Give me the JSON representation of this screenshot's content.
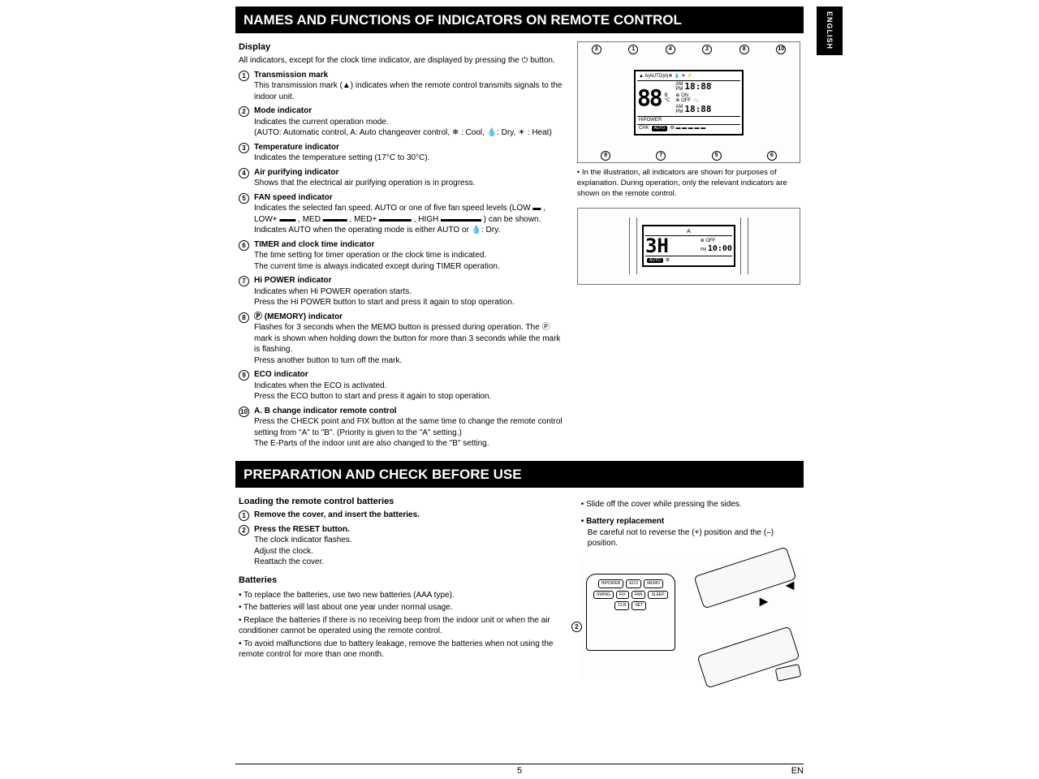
{
  "lang_tab": "ENGLISH",
  "section1_title": "NAMES AND FUNCTIONS OF INDICATORS ON REMOTE CONTROL",
  "display_heading": "Display",
  "display_intro": "All indicators, except for the clock time indicator, are displayed by pressing the  ⏻  button.",
  "items": [
    {
      "n": "1",
      "title": "Transmission mark",
      "desc": "This transmission mark (▲) indicates when the remote control transmits signals to the indoor unit."
    },
    {
      "n": "2",
      "title": "Mode indicator",
      "desc": "Indicates the current operation mode.\n(AUTO: Automatic control, A: Auto changeover control,  ❄ : Cool,  💧: Dry,  ☀ : Heat)"
    },
    {
      "n": "3",
      "title": "Temperature indicator",
      "desc": "Indicates the temperature setting (17°C to 30°C)."
    },
    {
      "n": "4",
      "title": "Air purifying indicator",
      "desc": "Shows that the electrical air purifying operation is in progress."
    },
    {
      "n": "5",
      "title": "FAN speed indicator",
      "desc": "Indicates the selected fan speed. AUTO or one of five fan speed levels (LOW ▬ , LOW+ ▬▬ , MED ▬▬▬ , MED+ ▬▬▬▬ , HIGH ▬▬▬▬▬ ) can be shown. Indicates AUTO when the operating mode is either AUTO or 💧: Dry."
    },
    {
      "n": "6",
      "title": "TIMER and clock time indicator",
      "desc": "The time setting for timer operation or the clock time is indicated.\nThe current time is always indicated except during TIMER operation."
    },
    {
      "n": "7",
      "title": "Hi POWER indicator",
      "desc": "Indicates when Hi POWER operation starts.\nPress the Hi POWER button to start and press it again to stop operation."
    },
    {
      "n": "8",
      "title": "Ⓟ (MEMORY) indicator",
      "desc": "Flashes for 3 seconds when the MEMO button is pressed during operation. The Ⓟ mark is shown when holding down the button for more than 3 seconds while the mark is flashing.\nPress another button to turn off the mark."
    },
    {
      "n": "9",
      "title": "ECO indicator",
      "desc": "Indicates when the ECO is activated.\nPress the ECO button to start and press it again to stop operation."
    },
    {
      "n": "10",
      "title": "A. B change indicator remote control",
      "desc": "Press the CHECK point and FIX button at the same time to change the remote control setting from \"A\" to \"B\". (Priority is given to the \"A\" setting.)\nThe E-Parts of the indoor unit are also changed to the \"B\" setting."
    }
  ],
  "lcd": {
    "icons_row": "▲ A|AUTO|A|❄ 💧 ☀  ⚡",
    "temp": "88",
    "unit_stack": "B\n°C",
    "time1_prefix": "AM\nPM",
    "time1": "18:88",
    "mid_icons": "⊕ ON\n⊕ OFF  ↑↓",
    "time2": "18:88",
    "row3_left": "HiPOWER",
    "row3_chk": "CHK",
    "row3_auto": "AUTO",
    "row3_fan": "⚙ ▬ ▬ ▬ ▬ ▬"
  },
  "callouts_top": [
    "3",
    "1",
    "4",
    "2",
    "8",
    "10"
  ],
  "callouts_bot": [
    "9",
    "7",
    "5",
    "6"
  ],
  "diagram_caption": "In the illustration, all indicators are shown for purposes of explanation. During operation, only the relevant indicators are shown on the remote control.",
  "lcd2": {
    "top_letter": "A",
    "temp": "3H",
    "off_label": "⊕ OFF",
    "time": "10:00",
    "pm": "PM",
    "auto": "AUTO",
    "fan": "⚙"
  },
  "section2_title": "PREPARATION AND CHECK BEFORE USE",
  "prep": {
    "heading": "Loading the remote control batteries",
    "step1_title": "Remove the cover, and insert the batteries.",
    "step2_title": "Press the RESET button.",
    "step2_desc": "The clock indicator flashes.\nAdjust the clock.\nReattach the cover.",
    "right_bullet1": "Slide off the cover while pressing the sides.",
    "right_head": "Battery replacement",
    "right_desc": "Be careful not to reverse the (+) position and the (–) position.",
    "batteries_head": "Batteries",
    "batteries": [
      "To replace the batteries, use two new batteries (AAA type).",
      "The batteries will last about one year under normal usage.",
      "Replace the batteries if there is no receiving beep from the indoor unit or when the air conditioner cannot be operated using the remote control.",
      "To avoid malfunctions due to battery leakage, remove the batteries when not using the remote control for more than one month."
    ],
    "buttons": [
      "HiPOWER",
      "ECO",
      "MEMO",
      "SWING",
      "FIX",
      "FAN",
      "SLEEP",
      "CLR",
      "SET"
    ],
    "callout2": "2"
  },
  "footer": {
    "page": "5",
    "lang": "EN"
  }
}
